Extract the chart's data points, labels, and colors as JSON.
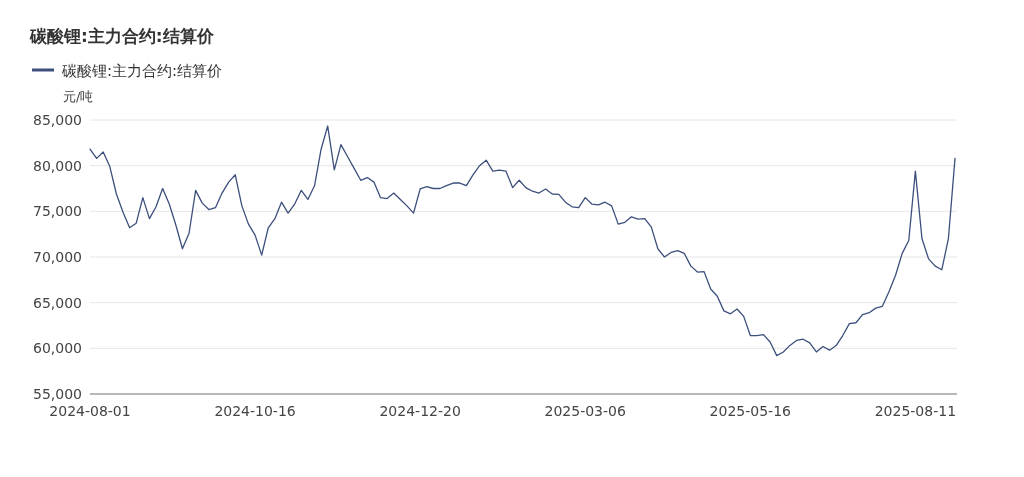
{
  "chart_data": {
    "type": "line",
    "title": "碳酸锂:主力合约:结算价",
    "ylabel": "元/吨",
    "categories": [
      "2024-08-01",
      null,
      null,
      null,
      null,
      null,
      null,
      null,
      null,
      null,
      null,
      null,
      null,
      null,
      null,
      null,
      null,
      null,
      null,
      null,
      null,
      null,
      null,
      null,
      null,
      "2024-10-16",
      null,
      null,
      null,
      null,
      null,
      null,
      null,
      null,
      null,
      null,
      null,
      null,
      null,
      null,
      null,
      null,
      null,
      null,
      null,
      null,
      null,
      null,
      null,
      null,
      "2024-12-20",
      null,
      null,
      null,
      null,
      null,
      null,
      null,
      null,
      null,
      null,
      null,
      null,
      null,
      null,
      null,
      null,
      null,
      null,
      null,
      null,
      null,
      null,
      null,
      null,
      "2025-03-06",
      null,
      null,
      null,
      null,
      null,
      null,
      null,
      null,
      null,
      null,
      null,
      null,
      null,
      null,
      null,
      null,
      null,
      null,
      null,
      null,
      null,
      null,
      null,
      null,
      "2025-05-16",
      null,
      null,
      null,
      null,
      null,
      null,
      null,
      null,
      null,
      null,
      null,
      null,
      null,
      null,
      null,
      null,
      null,
      null,
      null,
      null,
      null,
      null,
      null,
      null,
      "2025-08-11",
      null,
      null,
      null,
      null,
      null,
      null
    ],
    "series": [
      {
        "name": "碳酸锂:主力合约:结算价",
        "color": "#3d4f7c",
        "values": [
          81800,
          80800,
          81500,
          79900,
          76900,
          74900,
          73200,
          73700,
          76500,
          74200,
          75500,
          77500,
          75800,
          73500,
          70900,
          72600,
          77300,
          75900,
          75200,
          75400,
          77000,
          78200,
          79000,
          75600,
          73600,
          72400,
          70200,
          73200,
          74200,
          76000,
          74800,
          75800,
          77300,
          76300,
          77800,
          81800,
          84340,
          79530,
          82300,
          81000,
          79700,
          78400,
          78700,
          78200,
          76500,
          76400,
          77000,
          76300,
          75600,
          74800,
          77450,
          77700,
          77500,
          77500,
          77820,
          78100,
          78100,
          77820,
          79000,
          80000,
          80600,
          79400,
          79500,
          79400,
          77600,
          78400,
          77600,
          77200,
          77000,
          77450,
          76900,
          76850,
          76000,
          75500,
          75400,
          76500,
          75800,
          75700,
          76000,
          75600,
          73600,
          73800,
          74400,
          74150,
          74200,
          73300,
          70900,
          70000,
          70500,
          70700,
          70400,
          69000,
          68350,
          68400,
          66500,
          65700,
          64100,
          63780,
          64300,
          63500,
          61400,
          61400,
          61500,
          60700,
          59200,
          59600,
          60320,
          60860,
          61000,
          60600,
          59600,
          60200,
          59800,
          60300,
          61400,
          62700,
          62800,
          63700,
          63900,
          64400,
          64600,
          66200,
          68000,
          70400,
          71800,
          79400,
          72000,
          69800,
          69000,
          68600,
          72000,
          80800
        ]
      }
    ],
    "ylim": [
      55000,
      85000
    ],
    "yticks": [
      {
        "value": 55000,
        "label": "55,000"
      },
      {
        "value": 60000,
        "label": "60,000"
      },
      {
        "value": 65000,
        "label": "65,000"
      },
      {
        "value": 70000,
        "label": "70,000"
      },
      {
        "value": 75000,
        "label": "75,000"
      },
      {
        "value": 80000,
        "label": "80,000"
      },
      {
        "value": 85000,
        "label": "85,000"
      }
    ],
    "grid": "y",
    "legend": "top left"
  }
}
